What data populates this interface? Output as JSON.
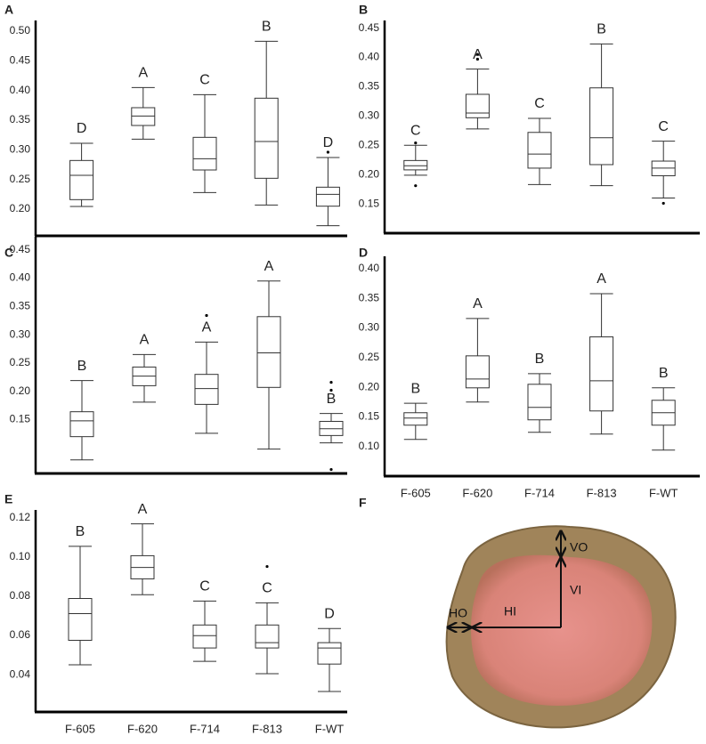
{
  "chart_data": [
    {
      "type": "box",
      "panel_label": "A",
      "categories": [
        null,
        null,
        null,
        null,
        null
      ],
      "color": "#333333",
      "ylim": [
        0.155,
        0.515
      ],
      "yticks": [
        {
          "value": 0.2,
          "label": "0.20"
        },
        0.25,
        {
          "value": 0.3,
          "label": "0.30"
        },
        0.35,
        {
          "value": 0.4,
          "label": "0.40"
        },
        0.45,
        {
          "value": 0.5,
          "label": "0.50"
        }
      ],
      "boxes": [
        {
          "low": 0.2045,
          "q1": 0.216,
          "median": 0.257,
          "q3": 0.282,
          "high": 0.311,
          "letter": "D"
        },
        {
          "low": 0.318,
          "q1": 0.341,
          "median": 0.357,
          "q3": 0.371,
          "high": 0.405,
          "letter": "A"
        },
        {
          "low": 0.228,
          "q1": 0.266,
          "median": 0.285,
          "q3": 0.321,
          "high": 0.393,
          "letter": "C"
        },
        {
          "low": 0.207,
          "q1": 0.252,
          "median": 0.314,
          "q3": 0.387,
          "high": 0.483,
          "letter": "B"
        },
        {
          "low": 0.172,
          "q1": 0.205,
          "median": 0.225,
          "q3": 0.237,
          "high": 0.287,
          "outliers": [
            0.296
          ],
          "letter": "D"
        }
      ]
    },
    {
      "type": "box",
      "panel_label": "B",
      "categories": [
        null,
        null,
        null,
        null,
        null
      ],
      "color": "#333333",
      "ylim": [
        0.1,
        0.46
      ],
      "yticks": [
        0.15,
        {
          "value": 0.2,
          "label": "0.20"
        },
        0.25,
        {
          "value": 0.3,
          "label": "0.30"
        },
        0.35,
        {
          "value": 0.4,
          "label": "0.40"
        },
        0.45
      ],
      "boxes": [
        {
          "low": 0.199,
          "q1": 0.208,
          "median": 0.215,
          "q3": 0.224,
          "high": 0.25,
          "outliers": [
            0.254,
            0.181
          ],
          "letter": "C"
        },
        {
          "low": 0.278,
          "q1": 0.297,
          "median": 0.305,
          "q3": 0.337,
          "high": 0.38,
          "outliers": [
            0.397,
            0.405
          ],
          "letter": "A"
        },
        {
          "low": 0.183,
          "q1": 0.211,
          "median": 0.235,
          "q3": 0.272,
          "high": 0.296,
          "letter": "C"
        },
        {
          "low": 0.181,
          "q1": 0.217,
          "median": 0.263,
          "q3": 0.348,
          "high": 0.423,
          "letter": "B"
        },
        {
          "low": 0.16,
          "q1": 0.198,
          "median": 0.211,
          "q3": 0.223,
          "high": 0.257,
          "outliers": [
            0.151
          ],
          "letter": "C"
        }
      ]
    },
    {
      "type": "box",
      "panel_label": "C",
      "categories": [
        null,
        null,
        null,
        null,
        null
      ],
      "color": "#333333",
      "ylim": [
        0.055,
        0.47
      ],
      "yticks": [
        0.15,
        {
          "value": 0.2,
          "label": "0.20"
        },
        0.25,
        {
          "value": 0.3,
          "label": "0.30"
        },
        0.35,
        {
          "value": 0.4,
          "label": "0.40"
        },
        0.45
      ],
      "boxes": [
        {
          "low": 0.079,
          "q1": 0.12,
          "median": 0.148,
          "q3": 0.164,
          "high": 0.219,
          "letter": "B"
        },
        {
          "low": 0.181,
          "q1": 0.21,
          "median": 0.227,
          "q3": 0.243,
          "high": 0.265,
          "letter": "A"
        },
        {
          "low": 0.126,
          "q1": 0.177,
          "median": 0.205,
          "q3": 0.23,
          "high": 0.287,
          "outliers": [
            0.334
          ],
          "letter": "A"
        },
        {
          "low": 0.098,
          "q1": 0.207,
          "median": 0.268,
          "q3": 0.332,
          "high": 0.395,
          "letter": "A"
        },
        {
          "low": 0.109,
          "q1": 0.122,
          "median": 0.134,
          "q3": 0.147,
          "high": 0.161,
          "outliers": [
            0.202,
            0.216,
            0.062
          ],
          "letter": "B"
        }
      ]
    },
    {
      "type": "box",
      "panel_label": "D",
      "categories": [
        "F-605",
        "F-620",
        "F-714",
        "F-813",
        "F-WT"
      ],
      "color": "#333333",
      "ylim": [
        0.05,
        0.418
      ],
      "yticks": [
        {
          "value": 0.1,
          "label": "0.10"
        },
        0.15,
        {
          "value": 0.2,
          "label": "0.20"
        },
        0.25,
        {
          "value": 0.3,
          "label": "0.30"
        },
        0.35,
        {
          "value": 0.4,
          "label": "0.40"
        }
      ],
      "boxes": [
        {
          "low": 0.112,
          "q1": 0.136,
          "median": 0.148,
          "q3": 0.157,
          "high": 0.173,
          "letter": "B"
        },
        {
          "low": 0.175,
          "q1": 0.199,
          "median": 0.214,
          "q3": 0.253,
          "high": 0.316,
          "letter": "A"
        },
        {
          "low": 0.124,
          "q1": 0.145,
          "median": 0.166,
          "q3": 0.205,
          "high": 0.223,
          "letter": "B"
        },
        {
          "low": 0.121,
          "q1": 0.16,
          "median": 0.211,
          "q3": 0.285,
          "high": 0.358,
          "letter": "A"
        },
        {
          "low": 0.094,
          "q1": 0.136,
          "median": 0.157,
          "q3": 0.178,
          "high": 0.199,
          "letter": "B"
        }
      ]
    },
    {
      "type": "box",
      "panel_label": "E",
      "categories": [
        "F-605",
        "F-620",
        "F-714",
        "F-813",
        "F-WT"
      ],
      "color": "#333333",
      "ylim": [
        0.021,
        0.123
      ],
      "yticks": [
        0.04,
        0.06,
        0.08,
        {
          "value": 0.1,
          "label": "0.10"
        },
        0.12
      ],
      "boxes": [
        {
          "low": 0.045,
          "q1": 0.0575,
          "median": 0.0711,
          "q3": 0.0788,
          "high": 0.1054,
          "letter": "B"
        },
        {
          "low": 0.0807,
          "q1": 0.0888,
          "median": 0.0946,
          "q3": 0.1006,
          "high": 0.1168,
          "letter": "A"
        },
        {
          "low": 0.0468,
          "q1": 0.0536,
          "median": 0.0599,
          "q3": 0.0653,
          "high": 0.0775,
          "letter": "C"
        },
        {
          "low": 0.0405,
          "q1": 0.0536,
          "median": 0.0563,
          "q3": 0.0653,
          "high": 0.0766,
          "outliers": [
            0.0951
          ],
          "letter": "C"
        },
        {
          "low": 0.0314,
          "q1": 0.0454,
          "median": 0.0536,
          "q3": 0.0563,
          "high": 0.0635,
          "letter": "D"
        }
      ]
    }
  ],
  "image_panel": {
    "panel_label": "F",
    "labels": {
      "vo": "VO",
      "vi": "VI",
      "ho": "HO",
      "hi": "HI"
    }
  }
}
